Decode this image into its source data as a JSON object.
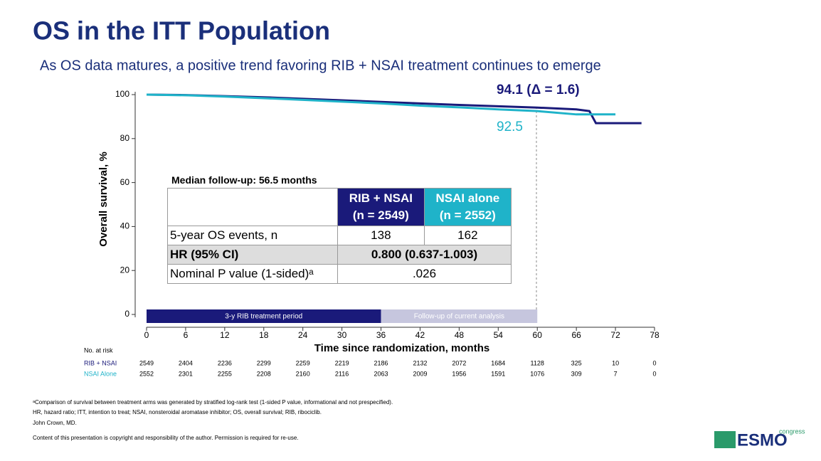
{
  "slide": {
    "title": "OS in the ITT Population",
    "subtitle": "As OS data matures, a positive trend favoring RIB + NSAI treatment continues to emerge"
  },
  "chart_data": {
    "type": "line",
    "x_label": "Time since randomization, months",
    "y_label": "Overall survival, %",
    "x": [
      0,
      6,
      12,
      18,
      24,
      30,
      36,
      42,
      48,
      54,
      60,
      66,
      68,
      69,
      72,
      76
    ],
    "series": [
      {
        "name": "RIB + NSAI",
        "color": "#1a1a7a",
        "values": [
          100,
          99.8,
          99.3,
          98.8,
          98.1,
          97.4,
          96.7,
          96.0,
          95.3,
          94.7,
          94.1,
          93.3,
          92.5,
          87.0,
          87.0,
          87.0
        ]
      },
      {
        "name": "NSAI Alone",
        "color": "#1fb3c9",
        "values": [
          100,
          99.7,
          99.1,
          98.4,
          97.6,
          96.8,
          96.0,
          95.0,
          94.2,
          93.3,
          92.5,
          91.0,
          91.0,
          91.0,
          91.0,
          null
        ]
      }
    ],
    "annotations": [
      "94.1 (Δ = 1.6)",
      "92.5"
    ],
    "bands": [
      {
        "label": "3-y RIB treatment period",
        "start": 0,
        "end": 36,
        "color": "#1a1a7a"
      },
      {
        "label": "Follow-up of current analysis",
        "start": 36,
        "end": 60,
        "color": "#c6c6de"
      }
    ],
    "xlim": [
      0,
      78
    ],
    "xticks": [
      0,
      6,
      12,
      18,
      24,
      30,
      36,
      42,
      48,
      54,
      60,
      66,
      72,
      78
    ],
    "ylim": [
      0,
      100
    ],
    "yticks": [
      0,
      20,
      40,
      60,
      80,
      100
    ],
    "at_risk": {
      "title": "No. at risk",
      "rows": [
        {
          "name": "RIB + NSAI",
          "values": [
            2549,
            2404,
            2236,
            2299,
            2259,
            2219,
            2186,
            2132,
            2072,
            1684,
            1128,
            325,
            10,
            0
          ]
        },
        {
          "name": "NSAI Alone",
          "values": [
            2552,
            2301,
            2255,
            2208,
            2160,
            2116,
            2063,
            2009,
            1956,
            1591,
            1076,
            309,
            7,
            0
          ]
        }
      ]
    }
  },
  "table": {
    "title": "Median follow-up: 56.5 months",
    "header": [
      {
        "name": "RIB + NSAI",
        "n": "(n = 2549)"
      },
      {
        "name": "NSAI alone",
        "n": "(n = 2552)"
      }
    ],
    "rows": [
      [
        "5-year OS events, n",
        "138",
        "162"
      ],
      [
        "HR (95% CI)",
        "0.800 (0.637-1.003)"
      ],
      [
        "Nominal P value (1-sided)ᵃ",
        ".026"
      ]
    ]
  },
  "footnotes": [
    "ᵃComparison of survival between treatment arms was generated by stratified log-rank test (1-sided P value, informational and not prespecified).",
    "HR, hazard ratio; ITT, intention to treat; NSAI, nonsteroidal aromatase inhibitor; OS, overall survival; RIB, ribociclib.",
    "John Crown, MD.",
    "Content of this presentation is copyright and responsibility of the author. Permission is required for re-use."
  ],
  "logo": {
    "name": "ESMO",
    "tag": "congress"
  }
}
